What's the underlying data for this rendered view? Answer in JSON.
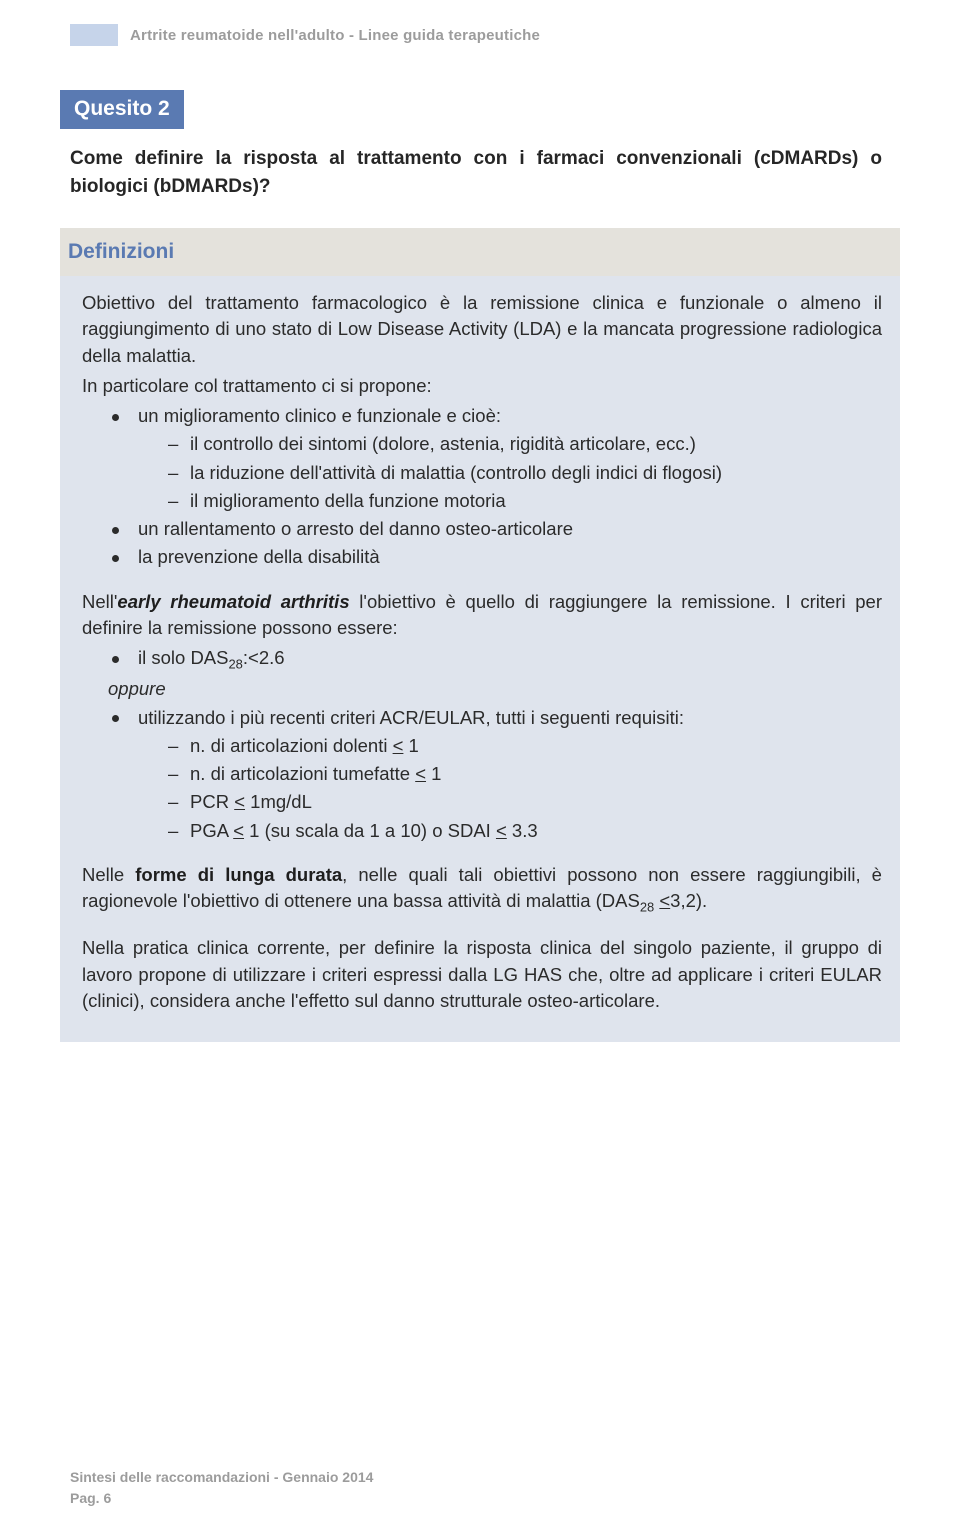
{
  "header": {
    "box_color": "#c6d4ea",
    "title": "Artrite reumatoide nell'adulto - Linee guida terapeutiche"
  },
  "quesito": {
    "tag": "Quesito 2",
    "text": "Come definire la risposta al trattamento con i farmaci convenzionali (cDMARDs) o biologici (bDMARDs)?"
  },
  "definizioni": {
    "heading": "Definizioni",
    "para1": "Obiettivo del trattamento farmacologico è la remissione clinica e funzionale o almeno il raggiungimento di uno stato di Low Disease Activity (LDA) e la mancata progressione radiologica della malattia.",
    "para2": "In particolare col trattamento ci si propone:",
    "b1": "un miglioramento clinico e funzionale e cioè:",
    "b1d1": "il controllo dei sintomi (dolore, astenia, rigidità articolare, ecc.)",
    "b1d2": "la riduzione dell'attività di malattia (controllo degli indici di flogosi)",
    "b1d3": "il miglioramento della funzione motoria",
    "b2": "un rallentamento o arresto del danno osteo-articolare",
    "b3": "la prevenzione della disabilità",
    "para3a": "Nell'",
    "para3b": "early rheumatoid arthritis",
    "para3c": " l'obiettivo è quello di raggiungere la remissione. I criteri per definire la remissione possono essere:",
    "crit1_a": "il solo DAS",
    "crit1_b": ":<2.6",
    "oppure": "oppure",
    "crit2": "utilizzando i più recenti criteri ACR/EULAR, tutti i seguenti requisiti:",
    "c2d1": "n. di articolazioni dolenti < 1",
    "c2d2": "n. di articolazioni tumefatte < 1",
    "c2d3": "PCR < 1mg/dL",
    "c2d4": "PGA < 1 (su scala da 1 a 10) o SDAI < 3.3",
    "para4a": "Nelle ",
    "para4b": "forme di lunga durata",
    "para4c": ", nelle quali tali obiettivi possono non essere raggiungibili, è ragionevole l'obiettivo di ottenere una bassa attività di malattia (DAS",
    "para4c2": " <3,2).",
    "para5": "Nella pratica clinica corrente, per definire la risposta clinica del singolo paziente, il gruppo di lavoro propone di utilizzare i criteri espressi dalla LG HAS che, oltre ad applicare i criteri EULAR (clinici), considera anche l'effetto sul danno strutturale osteo-articolare."
  },
  "footer": {
    "line1": "Sintesi delle raccomandazioni - Gennaio 2014",
    "line2": "Pag.  6"
  },
  "colors": {
    "accent": "#5a7ab2",
    "panel_outer": "#e4e2dc",
    "panel_body": "#dfe4ed",
    "head_text": "#9c9c9c"
  }
}
